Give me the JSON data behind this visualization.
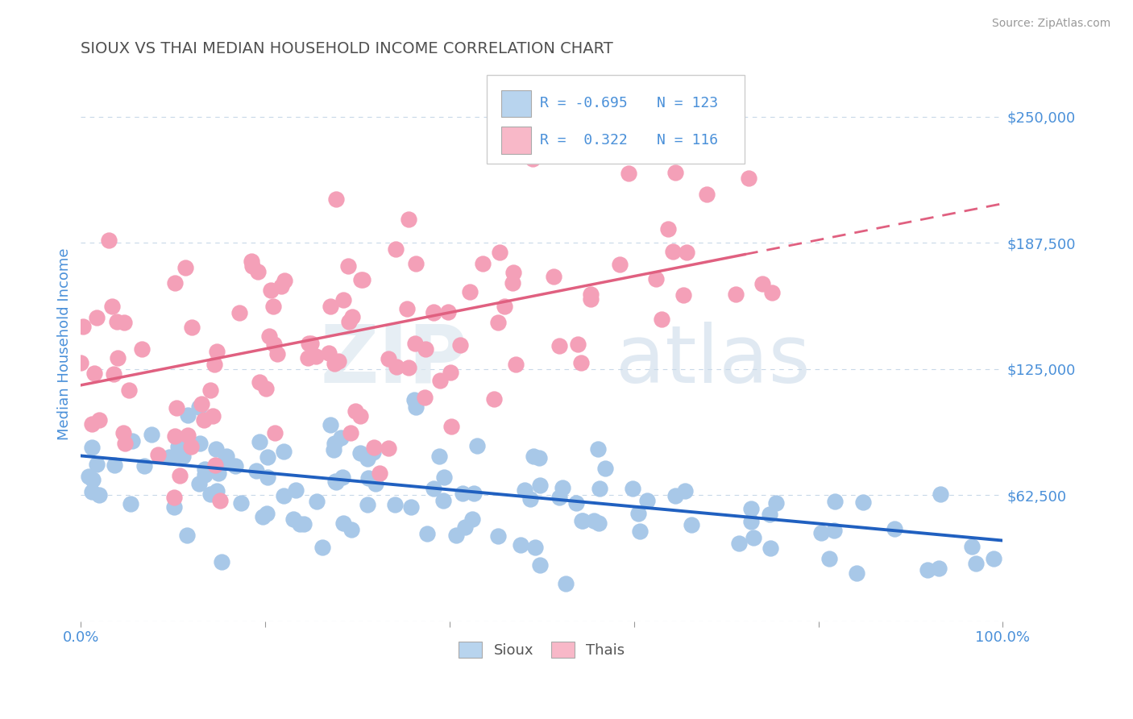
{
  "title": "SIOUX VS THAI MEDIAN HOUSEHOLD INCOME CORRELATION CHART",
  "source": "Source: ZipAtlas.com",
  "ylabel": "Median Household Income",
  "xlim": [
    0.0,
    1.0
  ],
  "ylim": [
    0,
    275000
  ],
  "yticks": [
    0,
    62500,
    125000,
    187500,
    250000
  ],
  "ytick_labels": [
    "",
    "$62,500",
    "$125,000",
    "$187,500",
    "$250,000"
  ],
  "sioux_color": "#a8c8e8",
  "thai_color": "#f4a0b8",
  "sioux_line_color": "#2060c0",
  "thai_line_color": "#e06080",
  "legend_sioux_color": "#b8d4ee",
  "legend_thai_color": "#f8b8c8",
  "R_sioux": -0.695,
  "N_sioux": 123,
  "R_thai": 0.322,
  "N_thai": 116,
  "sioux_intercept": 82000,
  "sioux_slope": -42000,
  "thai_intercept": 117000,
  "thai_slope": 90000,
  "watermark_zip": "ZIP",
  "watermark_atlas": "atlas",
  "background_color": "#ffffff",
  "grid_color": "#c8d8e8",
  "title_color": "#505050",
  "axis_label_color": "#4a90d9",
  "tick_label_color": "#4a90d9",
  "legend_text_color": "#4a90d9"
}
